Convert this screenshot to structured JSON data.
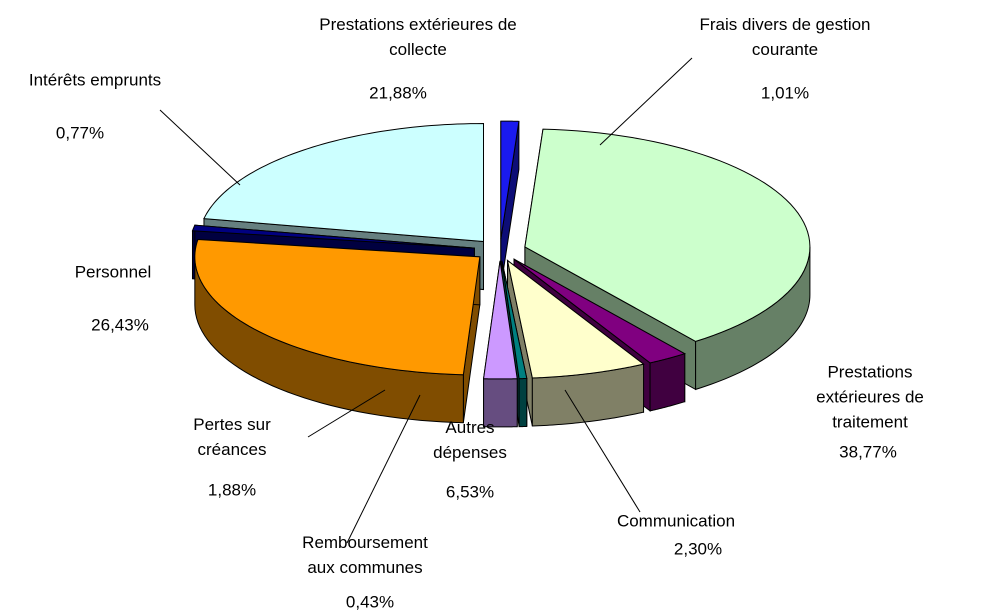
{
  "chart_data": {
    "type": "pie3d",
    "categories": [
      "Frais divers de gestion\ncourante",
      "Prestations extérieures de\ntraitement",
      "Communication",
      "Autres\ndépenses",
      "Remboursement\naux communes",
      "Pertes sur\ncréances",
      "Personnel",
      "Intérêts emprunts",
      "Prestations extérieures de\ncollecte"
    ],
    "values": [
      1.01,
      38.77,
      2.3,
      6.53,
      0.43,
      1.88,
      26.43,
      0.77,
      21.88
    ],
    "value_labels": [
      "1,01%",
      "38,77%",
      "2,30%",
      "6,53%",
      "0,43%",
      "1,88%",
      "26,43%",
      "0,77%",
      "21,88%"
    ],
    "colors": [
      "#1a1aee",
      "#ccffcc",
      "#800080",
      "#ffffcc",
      "#008080",
      "#cc99ff",
      "#ff9900",
      "#000080",
      "#ccffff"
    ]
  }
}
